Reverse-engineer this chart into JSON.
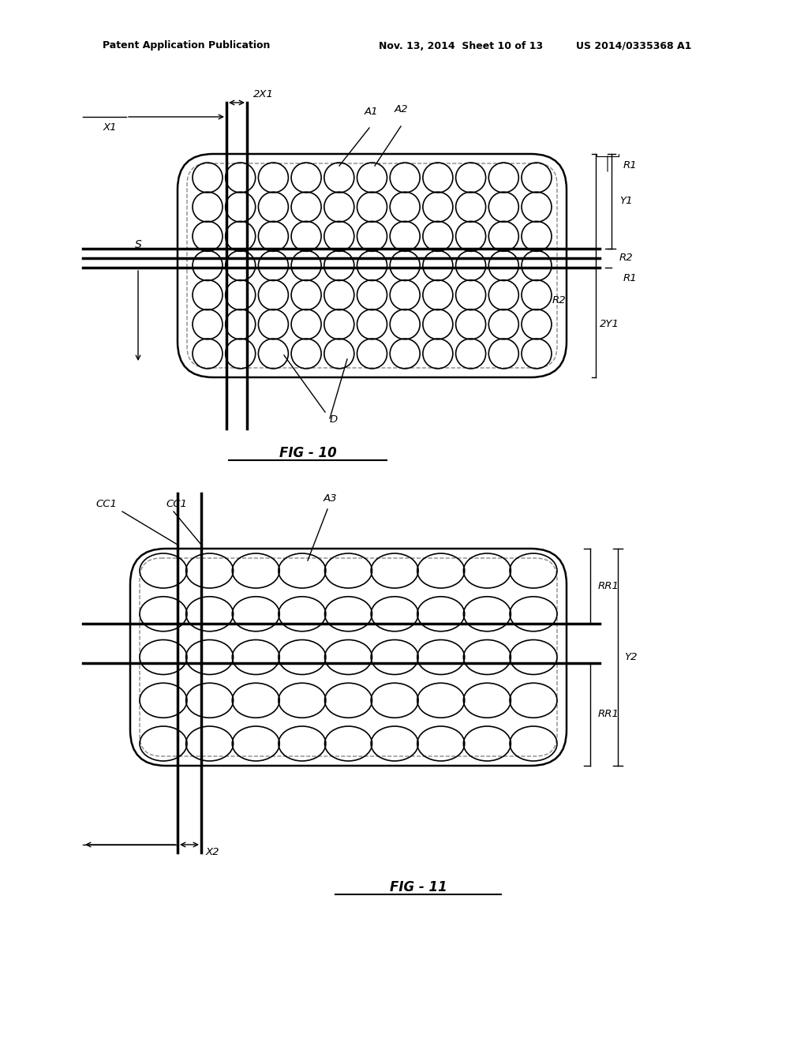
{
  "bg_color": "#ffffff",
  "header_line1": "Patent Application Publication",
  "header_line2": "Nov. 13, 2014  Sheet 10 of 13",
  "header_line3": "US 2014/0335368 A1",
  "fig10_label": "FIG - 10",
  "fig11_label": "FIG - 11"
}
